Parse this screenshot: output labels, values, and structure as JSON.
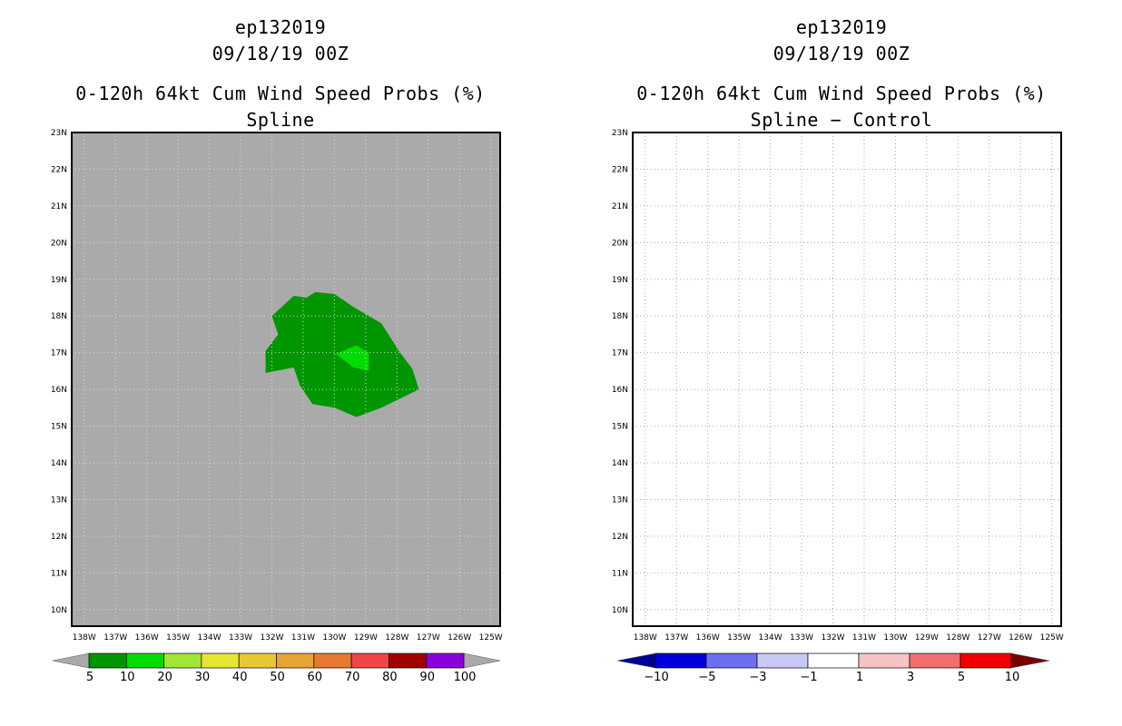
{
  "panels": [
    {
      "title_storm": "ep132019",
      "title_date": "09/18/19 00Z",
      "title_product": "0-120h 64kt Cum Wind Speed Probs (%)",
      "subtitle": "Spline",
      "background_color": "#aaaaaa",
      "colorbar": {
        "labels": [
          "5",
          "10",
          "20",
          "30",
          "40",
          "50",
          "60",
          "70",
          "80",
          "90",
          "100"
        ],
        "colors": [
          "#009600",
          "#00dc00",
          "#a0e632",
          "#e6e632",
          "#e6c832",
          "#e6a532",
          "#e67832",
          "#f04646",
          "#a00000",
          "#8c00dc"
        ],
        "end_low_color": "#aaaaaa",
        "end_high_color": "#aaaaaa"
      }
    },
    {
      "title_storm": "ep132019",
      "title_date": "09/18/19 00Z",
      "title_product": "0-120h 64kt Cum Wind Speed Probs (%)",
      "subtitle": "Spline − Control",
      "background_color": "#ffffff",
      "colorbar": {
        "labels": [
          "−10",
          "−5",
          "−3",
          "−1",
          "1",
          "3",
          "5",
          "10"
        ],
        "colors": [
          "#0000dc",
          "#6e6ef0",
          "#c8c8f5",
          "#ffffff",
          "#f5c3c3",
          "#f06e6e",
          "#f00000"
        ],
        "end_low_color": "#000096",
        "end_high_color": "#780000"
      }
    }
  ],
  "chart_data": [
    {
      "type": "filled-contour-map",
      "title": "0-120h 64kt Cum Wind Speed Probs (%) — Spline",
      "x_ticks": [
        "138W",
        "137W",
        "136W",
        "135W",
        "134W",
        "133W",
        "132W",
        "131W",
        "130W",
        "129W",
        "128W",
        "127W",
        "126W",
        "125W"
      ],
      "y_ticks": [
        "10N",
        "11N",
        "12N",
        "13N",
        "14N",
        "15N",
        "16N",
        "17N",
        "18N",
        "19N",
        "20N",
        "21N",
        "22N",
        "23N"
      ],
      "xlim_lon_west": [
        138.4,
        124.7
      ],
      "ylim_lat": [
        9.55,
        23
      ],
      "contours": [
        {
          "level": "5-10%",
          "color": "#009600",
          "lon_lat": [
            [
              132.0,
              18.0
            ],
            [
              131.3,
              18.55
            ],
            [
              130.9,
              18.5
            ],
            [
              130.6,
              18.65
            ],
            [
              130.0,
              18.6
            ],
            [
              129.4,
              18.25
            ],
            [
              128.5,
              17.8
            ],
            [
              127.9,
              17.0
            ],
            [
              127.5,
              16.55
            ],
            [
              127.3,
              16.0
            ],
            [
              128.5,
              15.5
            ],
            [
              129.3,
              15.25
            ],
            [
              130.0,
              15.5
            ],
            [
              130.7,
              15.6
            ],
            [
              131.1,
              16.1
            ],
            [
              131.3,
              16.6
            ],
            [
              131.6,
              16.55
            ],
            [
              132.2,
              16.45
            ],
            [
              132.2,
              17.05
            ],
            [
              131.8,
              17.5
            ]
          ]
        },
        {
          "level": "10-20%",
          "color": "#00dc00",
          "lon_lat": [
            [
              130.0,
              16.95
            ],
            [
              129.3,
              17.2
            ],
            [
              128.9,
              17.0
            ],
            [
              128.9,
              16.5
            ],
            [
              129.4,
              16.6
            ],
            [
              130.0,
              17.0
            ]
          ]
        }
      ]
    },
    {
      "type": "filled-contour-map",
      "title": "0-120h 64kt Cum Wind Speed Probs (%) — Spline − Control",
      "x_ticks": [
        "138W",
        "137W",
        "136W",
        "135W",
        "134W",
        "133W",
        "132W",
        "131W",
        "130W",
        "129W",
        "128W",
        "127W",
        "126W",
        "125W"
      ],
      "y_ticks": [
        "10N",
        "11N",
        "12N",
        "13N",
        "14N",
        "15N",
        "16N",
        "17N",
        "18N",
        "19N",
        "20N",
        "21N",
        "22N",
        "23N"
      ],
      "xlim_lon_west": [
        138.4,
        124.7
      ],
      "ylim_lat": [
        9.55,
        23
      ],
      "contours": []
    }
  ]
}
